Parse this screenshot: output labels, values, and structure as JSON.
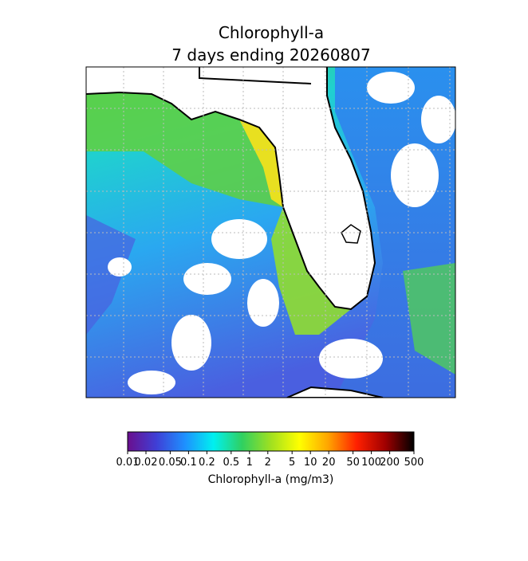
{
  "map": {
    "title": "Chlorophyll-a",
    "subtitle": "7 days ending 20260807",
    "colorbar": {
      "label": "Chlorophyll-a (mg/m3)",
      "scale": "log",
      "lim": [
        0.01,
        500
      ],
      "ticks": [
        0.01,
        0.02,
        0.05,
        0.1,
        0.2,
        0.5,
        1,
        2,
        5,
        10,
        20,
        50,
        100,
        200,
        500
      ],
      "colors": [
        "#6a0f8e",
        "#3f3fd6",
        "#1e90ff",
        "#00f0f0",
        "#30d060",
        "#a0e020",
        "#ffff00",
        "#ffa500",
        "#ff2000",
        "#a00000",
        "#000000"
      ]
    }
  }
}
